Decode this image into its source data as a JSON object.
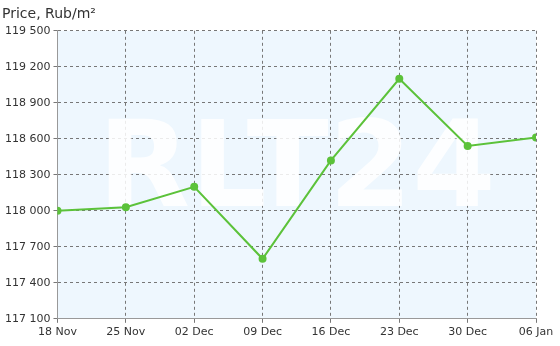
{
  "chart_data": {
    "type": "line",
    "title": "Price, Rub/m²",
    "categories": [
      "18 Nov",
      "25 Nov",
      "02 Dec",
      "09 Dec",
      "16 Dec",
      "23 Dec",
      "30 Dec",
      "06 Jan"
    ],
    "values": [
      118000,
      118030,
      118200,
      117600,
      118420,
      119100,
      118540,
      118610
    ],
    "color": "#5cc23a",
    "marker": "circle",
    "ylim": [
      117100,
      119500
    ],
    "yticks": [
      {
        "value": 117100,
        "label": "117 100"
      },
      {
        "value": 117400,
        "label": "117 400"
      },
      {
        "value": 117700,
        "label": "117 700"
      },
      {
        "value": 118000,
        "label": "118 000"
      },
      {
        "value": 118300,
        "label": "118 300"
      },
      {
        "value": 118600,
        "label": "118 600"
      },
      {
        "value": 118900,
        "label": "118 900"
      },
      {
        "value": 119200,
        "label": "119 200"
      },
      {
        "value": 119500,
        "label": "119 500"
      }
    ],
    "grid": true,
    "annotations": [
      "RLT24"
    ]
  }
}
